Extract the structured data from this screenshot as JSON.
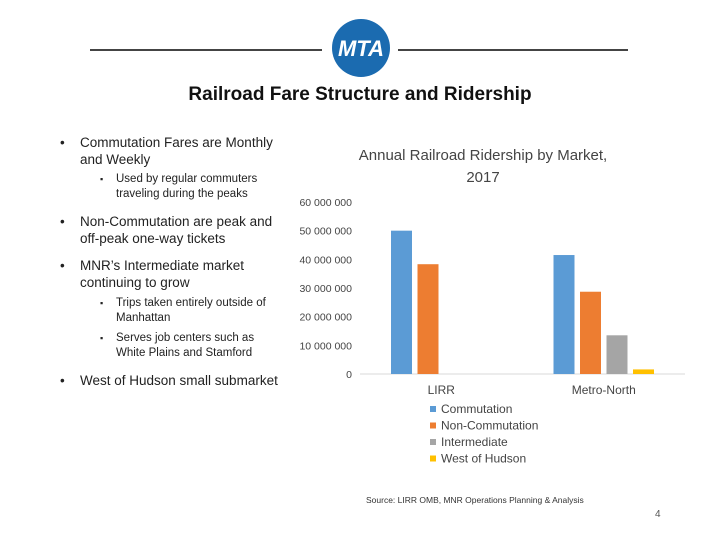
{
  "slide": {
    "title": "Railroad Fare Structure and Ridership",
    "logo_text": "MTA",
    "page_number": "4",
    "source": "Source: LIRR OMB, MNR Operations Planning & Analysis"
  },
  "bullets": [
    {
      "text": "Commutation Fares are Monthly and Weekly",
      "subs": [
        "Used by regular commuters traveling during the peaks"
      ]
    },
    {
      "text": "Non-Commutation are peak and off-peak one-way tickets",
      "subs": []
    },
    {
      "text": "MNR’s Intermediate market continuing to grow",
      "subs": [
        "Trips taken entirely outside of Manhattan",
        "Serves job centers such as White Plains and Stamford"
      ]
    },
    {
      "text": "West of Hudson small submarket",
      "subs": []
    }
  ],
  "colors": {
    "logo": "#1b6bb0",
    "accent": "#5b9bd5"
  },
  "chart_data": {
    "type": "bar",
    "title": "Annual Railroad Ridership by Market, 2017",
    "categories": [
      "LIRR",
      "Metro-North"
    ],
    "series": [
      {
        "name": "Commutation",
        "color": "#5b9bd5",
        "values": [
          50000000,
          41500000
        ]
      },
      {
        "name": "Non-Commutation",
        "color": "#ed7d31",
        "values": [
          38300000,
          28700000
        ]
      },
      {
        "name": "Intermediate",
        "color": "#a5a5a5",
        "values": [
          0,
          13500000
        ]
      },
      {
        "name": "West of Hudson",
        "color": "#ffc000",
        "values": [
          0,
          1600000
        ]
      }
    ],
    "ylim": [
      0,
      60000000
    ],
    "yticks": [
      "0",
      "10 000 000",
      "20 000 000",
      "30 000 000",
      "40 000 000",
      "50 000 000",
      "60 000 000"
    ],
    "grid": false,
    "legend": "bottom"
  }
}
